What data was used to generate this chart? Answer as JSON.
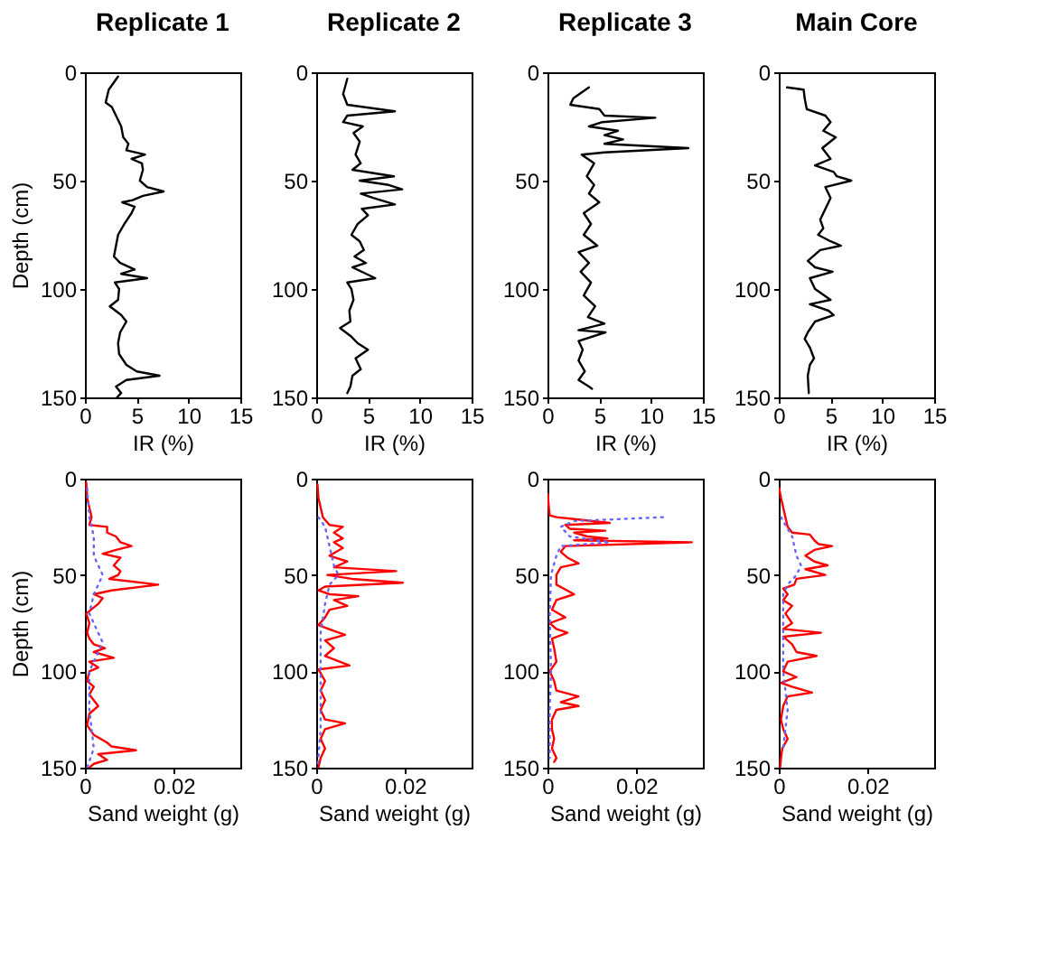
{
  "chart_data": [
    {
      "type": "line",
      "orientation": "horizontal",
      "title": "Replicate 1",
      "xlabel": "IR (%)",
      "ylabel": "Depth (cm)",
      "xlim": [
        0,
        15
      ],
      "xticks": [
        0,
        5,
        10,
        15
      ],
      "ylim": [
        150,
        0
      ],
      "yticks": [
        0,
        50,
        100,
        150
      ],
      "series": [
        {
          "color": "#000000",
          "x": [
            2,
            8,
            14,
            16,
            20,
            25,
            30,
            33,
            36,
            38,
            40,
            42,
            45,
            50,
            53,
            55,
            57,
            59,
            60,
            62,
            65,
            70,
            75,
            80,
            85,
            88,
            91,
            93,
            95,
            97,
            100,
            105,
            108,
            112,
            115,
            120,
            125,
            130,
            135,
            138,
            140,
            142,
            145,
            148,
            150
          ],
          "values": [
            3.2,
            2.3,
            2.0,
            2.6,
            3.0,
            3.5,
            3.7,
            4.2,
            4.0,
            5.8,
            4.5,
            5.5,
            5.6,
            5.3,
            6.0,
            7.6,
            5.6,
            4.6,
            3.6,
            4.8,
            4.5,
            3.8,
            3.2,
            3.0,
            2.8,
            3.4,
            4.8,
            3.5,
            6.0,
            2.9,
            3.3,
            3.2,
            2.4,
            3.5,
            4.0,
            3.4,
            3.2,
            3.3,
            4.0,
            5.0,
            7.2,
            4.0,
            3.0,
            3.5,
            3.1
          ]
        }
      ]
    },
    {
      "type": "line",
      "orientation": "horizontal",
      "title": "Replicate 2",
      "xlabel": "IR (%)",
      "xlim": [
        0,
        15
      ],
      "xticks": [
        0,
        5,
        10,
        15
      ],
      "ylim": [
        150,
        0
      ],
      "yticks": [
        0,
        50,
        100,
        150
      ],
      "series": [
        {
          "color": "#000000",
          "x": [
            3,
            10,
            15,
            18,
            20,
            23,
            25,
            28,
            32,
            38,
            42,
            45,
            48,
            50,
            52,
            54,
            56,
            58,
            61,
            63,
            66,
            70,
            75,
            78,
            82,
            85,
            88,
            90,
            95,
            97,
            100,
            105,
            110,
            115,
            118,
            122,
            125,
            128,
            132,
            137,
            140,
            145,
            148
          ],
          "values": [
            3.0,
            2.6,
            3.0,
            7.6,
            3.0,
            2.6,
            4.5,
            3.6,
            4.2,
            3.8,
            4.3,
            3.5,
            7.5,
            4.2,
            7.0,
            8.3,
            4.3,
            5.5,
            7.6,
            4.4,
            5.0,
            4.0,
            3.4,
            4.2,
            4.6,
            3.7,
            4.8,
            3.5,
            5.7,
            3.0,
            3.4,
            3.6,
            3.2,
            3.3,
            2.3,
            3.4,
            4.0,
            5.0,
            3.8,
            4.3,
            3.5,
            3.3,
            3.0
          ]
        }
      ]
    },
    {
      "type": "line",
      "orientation": "horizontal",
      "title": "Replicate 3",
      "xlabel": "IR (%)",
      "xlim": [
        0,
        15
      ],
      "xticks": [
        0,
        5,
        10,
        15
      ],
      "ylim": [
        150,
        0
      ],
      "yticks": [
        0,
        50,
        100,
        150
      ],
      "series": [
        {
          "color": "#000000",
          "x": [
            7,
            12,
            15,
            17,
            20,
            21,
            23,
            25,
            27,
            29,
            31,
            33,
            35,
            37,
            38,
            42,
            48,
            52,
            56,
            60,
            65,
            70,
            75,
            80,
            83,
            88,
            92,
            97,
            103,
            108,
            113,
            116,
            119,
            120,
            124,
            128,
            133,
            138,
            142,
            145,
            146
          ],
          "values": [
            4.0,
            2.5,
            2.2,
            5.0,
            5.5,
            10.4,
            5.3,
            4.0,
            6.8,
            5.5,
            7.3,
            5.5,
            13.6,
            5.5,
            3.3,
            4.5,
            3.8,
            4.5,
            4.0,
            5.0,
            3.5,
            4.2,
            3.5,
            4.8,
            3.0,
            4.0,
            3.2,
            4.2,
            3.5,
            4.6,
            3.9,
            5.5,
            3.0,
            5.6,
            3.0,
            3.4,
            3.0,
            3.6,
            3.0,
            4.0,
            4.3
          ]
        }
      ]
    },
    {
      "type": "line",
      "orientation": "horizontal",
      "title": "Main Core",
      "xlabel": "IR (%)",
      "xlim": [
        0,
        15
      ],
      "xticks": [
        0,
        5,
        10,
        15
      ],
      "ylim": [
        150,
        0
      ],
      "yticks": [
        0,
        50,
        100,
        150
      ],
      "series": [
        {
          "color": "#000000",
          "x": [
            7,
            8,
            12,
            17,
            20,
            23,
            27,
            30,
            35,
            40,
            43,
            46,
            48,
            50,
            53,
            58,
            63,
            68,
            72,
            75,
            78,
            80,
            82,
            87,
            90,
            92,
            95,
            100,
            105,
            107,
            110,
            112,
            115,
            120,
            123,
            127,
            132,
            135,
            140,
            148
          ],
          "values": [
            0.8,
            2.4,
            2.5,
            2.7,
            4.5,
            5.0,
            4.3,
            5.5,
            4.2,
            5.0,
            3.5,
            5.3,
            5.6,
            7.0,
            4.5,
            5.0,
            4.5,
            4.0,
            4.3,
            3.8,
            5.0,
            6.0,
            4.0,
            2.8,
            3.5,
            5.2,
            3.0,
            3.5,
            5.0,
            3.0,
            4.8,
            5.3,
            3.5,
            2.8,
            2.5,
            3.0,
            3.4,
            3.0,
            2.8,
            2.9
          ]
        }
      ]
    },
    {
      "type": "line",
      "orientation": "horizontal",
      "xlabel": "Sand weight (g)",
      "ylabel": "Depth (cm)",
      "xlim": [
        0,
        0.035
      ],
      "xticks": [
        0,
        0.02
      ],
      "ylim": [
        150,
        0
      ],
      "yticks": [
        0,
        50,
        100,
        150
      ],
      "series": [
        {
          "color": "#ff0000",
          "line_style": "solid",
          "x": [
            2,
            10,
            15,
            20,
            24,
            25,
            28,
            30,
            33,
            35,
            37,
            39,
            41,
            45,
            48,
            50,
            52,
            55,
            58,
            60,
            62,
            65,
            70,
            75,
            80,
            83,
            86,
            88,
            90,
            93,
            95,
            98,
            100,
            105,
            108,
            112,
            118,
            122,
            128,
            133,
            137,
            139,
            141,
            143,
            146,
            148,
            150
          ],
          "values": [
            0.0003,
            0.0005,
            0.001,
            0.0015,
            0.001,
            0.005,
            0.005,
            0.007,
            0.008,
            0.0105,
            0.007,
            0.004,
            0.008,
            0.0065,
            0.008,
            0.0075,
            0.0055,
            0.0165,
            0.006,
            0.002,
            0.004,
            0.003,
            0.0003,
            0.001,
            0.0005,
            0.001,
            0.002,
            0.0045,
            0.002,
            0.0065,
            0.001,
            0.003,
            0.001,
            0.0005,
            0.002,
            0.001,
            0.003,
            0.001,
            0.0005,
            0.002,
            0.005,
            0.006,
            0.0115,
            0.003,
            0.005,
            0.002,
            0.001
          ]
        },
        {
          "color": "#6666ff",
          "line_style": "dotted",
          "x": [
            5,
            20,
            30,
            40,
            45,
            50,
            55,
            60,
            70,
            85,
            90,
            100,
            120,
            140,
            150
          ],
          "values": [
            0.0005,
            0.001,
            0.002,
            0.002,
            0.003,
            0.004,
            0.003,
            0.002,
            0.001,
            0.004,
            0.003,
            0.001,
            0.001,
            0.002,
            0.0005
          ]
        }
      ]
    },
    {
      "type": "line",
      "orientation": "horizontal",
      "xlabel": "Sand weight (g)",
      "xlim": [
        0,
        0.035
      ],
      "xticks": [
        0,
        0.02
      ],
      "ylim": [
        150,
        0
      ],
      "yticks": [
        0,
        50,
        100,
        150
      ],
      "series": [
        {
          "color": "#ff0000",
          "line_style": "solid",
          "x": [
            3,
            10,
            15,
            20,
            24,
            25,
            28,
            31,
            33,
            36,
            40,
            43,
            46,
            48,
            50,
            52,
            54,
            56,
            58,
            60,
            61,
            63,
            66,
            68,
            72,
            76,
            79,
            81,
            84,
            88,
            92,
            97,
            99,
            105,
            110,
            115,
            120,
            125,
            127,
            130,
            135,
            140,
            145,
            150
          ],
          "values": [
            0.0003,
            0.0005,
            0.001,
            0.0015,
            0.003,
            0.006,
            0.004,
            0.006,
            0.004,
            0.006,
            0.003,
            0.007,
            0.004,
            0.018,
            0.0025,
            0.008,
            0.0195,
            0.002,
            0.0005,
            0.003,
            0.0095,
            0.004,
            0.007,
            0.003,
            0.002,
            0.0005,
            0.004,
            0.0065,
            0.002,
            0.004,
            0.002,
            0.0075,
            0.0005,
            0.002,
            0.001,
            0.002,
            0.001,
            0.002,
            0.0065,
            0.002,
            0.001,
            0.002,
            0.001,
            0.0005
          ]
        },
        {
          "color": "#6666ff",
          "line_style": "dotted",
          "x": [
            20,
            25,
            35,
            45,
            50,
            55,
            65,
            80,
            100,
            130,
            150
          ],
          "values": [
            0.0005,
            0.002,
            0.003,
            0.004,
            0.005,
            0.003,
            0.002,
            0.001,
            0.001,
            0.001,
            0.0003
          ]
        }
      ]
    },
    {
      "type": "line",
      "orientation": "horizontal",
      "xlabel": "Sand weight (g)",
      "xlim": [
        0,
        0.035
      ],
      "xticks": [
        0,
        0.02
      ],
      "ylim": [
        150,
        0
      ],
      "yticks": [
        0,
        50,
        100,
        150
      ],
      "series": [
        {
          "color": "#ff0000",
          "line_style": "solid",
          "x": [
            8,
            15,
            19,
            20,
            21,
            23,
            24,
            26,
            27,
            28,
            30,
            31,
            32,
            33,
            35,
            38,
            41,
            44,
            46,
            50,
            55,
            60,
            63,
            68,
            72,
            75,
            78,
            80,
            83,
            88,
            95,
            100,
            105,
            110,
            113,
            116,
            118,
            120,
            125,
            130,
            135,
            140,
            145,
            147
          ],
          "values": [
            0.0001,
            0.0003,
            0.0005,
            0.002,
            0.006,
            0.014,
            0.004,
            0.005,
            0.013,
            0.006,
            0.009,
            0.0135,
            0.006,
            0.0325,
            0.004,
            0.003,
            0.0045,
            0.007,
            0.003,
            0.002,
            0.002,
            0.006,
            0.002,
            0.001,
            0.004,
            0.0005,
            0.002,
            0.0045,
            0.001,
            0.0015,
            0.002,
            0.0005,
            0.0015,
            0.002,
            0.007,
            0.003,
            0.007,
            0.002,
            0.001,
            0.001,
            0.0015,
            0.001,
            0.002,
            0.0015
          ]
        },
        {
          "color": "#6666ff",
          "line_style": "dotted",
          "x": [
            20,
            22,
            25,
            30,
            33,
            35,
            40,
            50,
            70,
            100,
            120,
            145
          ],
          "values": [
            0.026,
            0.006,
            0.003,
            0.005,
            0.014,
            0.003,
            0.002,
            0.0008,
            0.0005,
            0.0008,
            0.0005,
            0.0005
          ]
        }
      ]
    },
    {
      "type": "line",
      "orientation": "horizontal",
      "xlabel": "Sand weight (g)",
      "xlim": [
        0,
        0.035
      ],
      "xticks": [
        0,
        0.02
      ],
      "ylim": [
        150,
        0
      ],
      "yticks": [
        0,
        50,
        100,
        150
      ],
      "series": [
        {
          "color": "#ff0000",
          "line_style": "solid",
          "x": [
            5,
            10,
            15,
            20,
            25,
            28,
            29,
            32,
            34,
            35,
            37,
            40,
            43,
            45,
            47,
            50,
            52,
            55,
            57,
            60,
            63,
            66,
            70,
            75,
            78,
            80,
            82,
            86,
            90,
            92,
            95,
            100,
            103,
            106,
            108,
            111,
            113,
            118,
            125,
            130,
            135,
            140,
            145,
            150
          ],
          "values": [
            0.0001,
            0.0005,
            0.001,
            0.0015,
            0.002,
            0.003,
            0.007,
            0.008,
            0.009,
            0.012,
            0.008,
            0.006,
            0.008,
            0.011,
            0.006,
            0.0105,
            0.004,
            0.0035,
            0.001,
            0.002,
            0.001,
            0.003,
            0.0015,
            0.003,
            0.001,
            0.0095,
            0.001,
            0.003,
            0.004,
            0.0085,
            0.002,
            0.001,
            0.004,
            0.0005,
            0.003,
            0.0075,
            0.002,
            0.001,
            0.0005,
            0.001,
            0.002,
            0.0008,
            0.0005,
            0.0003
          ]
        },
        {
          "color": "#6666ff",
          "line_style": "dotted",
          "x": [
            20,
            30,
            40,
            45,
            50,
            55,
            60,
            80,
            100,
            120,
            140
          ],
          "values": [
            0.0005,
            0.003,
            0.004,
            0.005,
            0.004,
            0.002,
            0.001,
            0.001,
            0.001,
            0.002,
            0.001
          ]
        }
      ]
    }
  ]
}
